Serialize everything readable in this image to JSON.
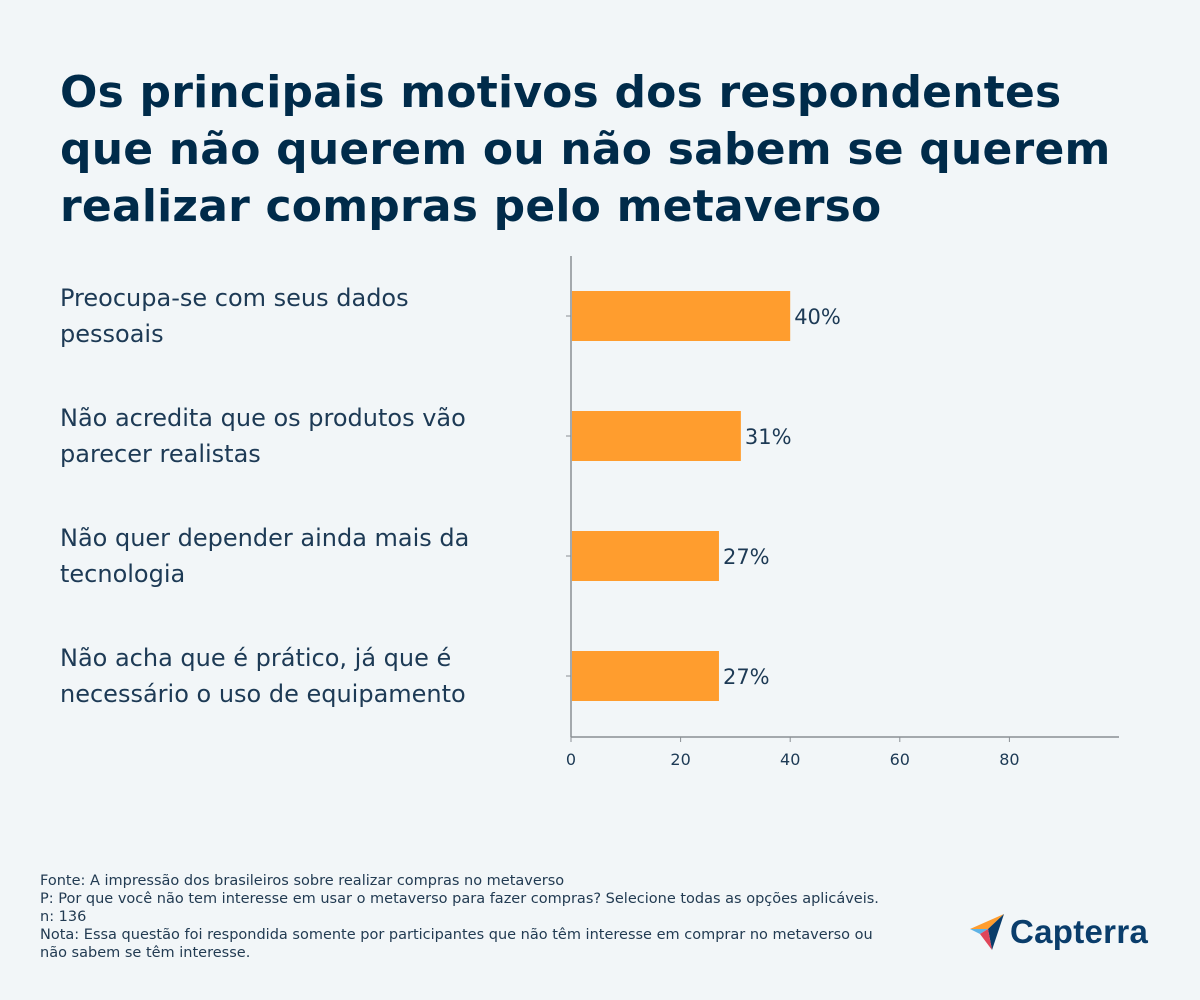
{
  "title_lines": [
    "Os principais motivos dos respondentes",
    "que não querem ou não sabem se querem",
    "realizar compras pelo metaverso"
  ],
  "chart_data": {
    "type": "bar",
    "orientation": "horizontal",
    "title": "Os principais motivos dos respondentes que não querem ou não sabem se querem realizar compras pelo metaverso",
    "categories": [
      "Preocupa-se com seus dados pessoais",
      "Não acredita que os produtos vão parecer realistas",
      "Não quer depender ainda mais da tecnologia",
      "Não acha que é prático, já que é necessário o uso de equipamento"
    ],
    "category_lines": [
      [
        "Preocupa-se com seus dados",
        "pessoais"
      ],
      [
        "Não acredita que os produtos vão",
        "parecer realistas"
      ],
      [
        "Não quer depender ainda mais da",
        "tecnologia"
      ],
      [
        "Não acha que é prático, já que é",
        "necessário o uso de equipamento"
      ]
    ],
    "values": [
      40,
      31,
      27,
      27
    ],
    "value_labels": [
      "40%",
      "31%",
      "27%",
      "27%"
    ],
    "xlim": [
      0,
      100
    ],
    "xticks": [
      0,
      20,
      40,
      60,
      80
    ],
    "xtick_labels": [
      "0",
      "20",
      "40",
      "60",
      "80"
    ],
    "grid": false,
    "colors": {
      "bar": "#ff9d2e",
      "axis": "#8a8f94",
      "text": "#1d3a55"
    }
  },
  "footer": {
    "source": "Fonte: A impressão dos brasileiros sobre realizar compras no metaverso",
    "question": "P: Por que você não tem interesse em usar o metaverso para fazer compras? Selecione todas as opções aplicáveis.",
    "n": "n: 136",
    "note_line1": "Nota: Essa questão foi respondida somente por participantes que não têm interesse em comprar no metaverso ou",
    "note_line2": "não sabem se têm interesse."
  },
  "logo": {
    "text": "Capterra",
    "icon": "capterra-arrow-icon"
  }
}
